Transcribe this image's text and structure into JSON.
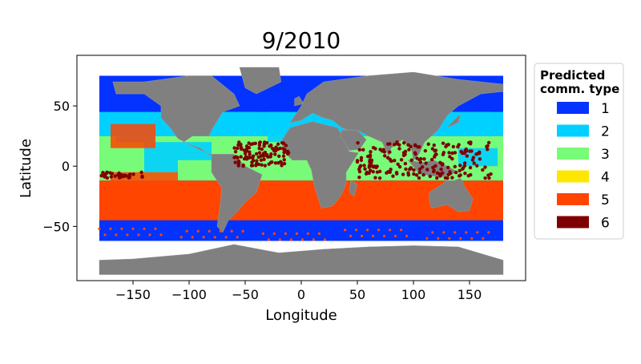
{
  "chart_data": {
    "type": "scatter",
    "title": "9/2010",
    "xlabel": "Longitude",
    "ylabel": "Latitude",
    "xlim": [
      -200,
      200
    ],
    "ylim": [
      -95,
      92
    ],
    "xticks": [
      -150,
      -100,
      -50,
      0,
      50,
      100,
      150
    ],
    "yticks": [
      -50,
      0,
      50
    ],
    "grid": false,
    "legend": {
      "title_line1": "Predicted",
      "title_line2": "comm. type",
      "placement": "outside-right-top",
      "entries": [
        {
          "label": "1",
          "color": "#0433ff"
        },
        {
          "label": "2",
          "color": "#00d0ff"
        },
        {
          "label": "3",
          "color": "#78fb78"
        },
        {
          "label": "4",
          "color": "#ffe600"
        },
        {
          "label": "5",
          "color": "#ff4500"
        },
        {
          "label": "6",
          "color": "#7f0000"
        }
      ]
    },
    "ocean_bands": [
      {
        "type": "1",
        "lat_range": [
          45,
          75
        ]
      },
      {
        "type": "2",
        "lat_range": [
          25,
          45
        ]
      },
      {
        "type": "3",
        "lat_range": [
          -12,
          25
        ]
      },
      {
        "type": "5",
        "lat_range": [
          -45,
          -12
        ]
      },
      {
        "type": "1",
        "lat_range": [
          -62,
          -45
        ]
      }
    ],
    "type6_clusters": [
      {
        "lon": [
          -180,
          -140
        ],
        "lat": [
          -10,
          -5
        ]
      },
      {
        "lon": [
          -60,
          -10
        ],
        "lat": [
          0,
          20
        ]
      },
      {
        "lon": [
          50,
          170
        ],
        "lat": [
          -10,
          20
        ]
      }
    ]
  }
}
